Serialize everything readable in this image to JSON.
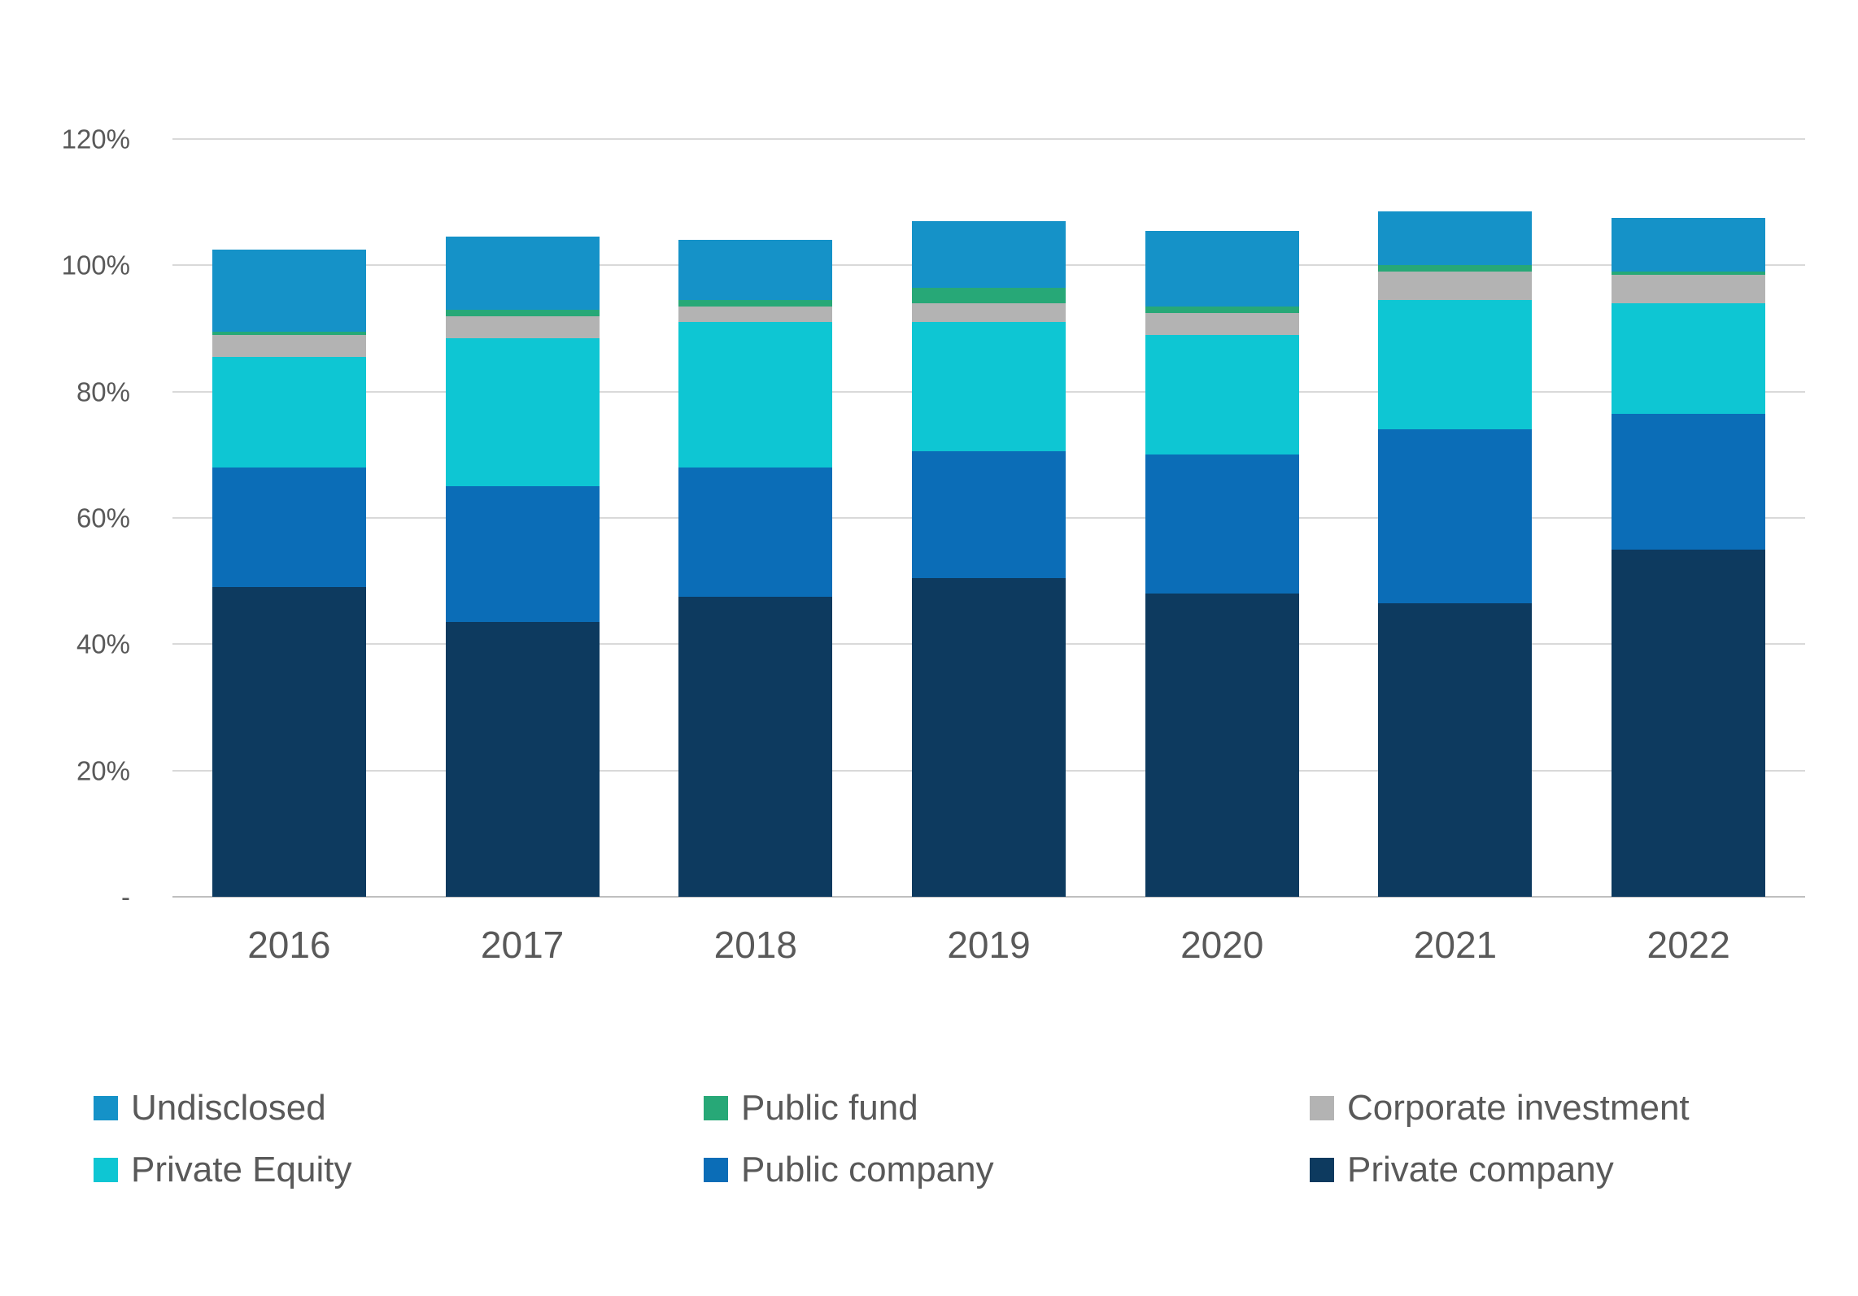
{
  "chart_data": {
    "type": "bar",
    "stacked": true,
    "categories": [
      "2016",
      "2017",
      "2018",
      "2019",
      "2020",
      "2021",
      "2022"
    ],
    "series": [
      {
        "name": "Private company",
        "color": "#0d3a5f",
        "values": [
          49.0,
          43.5,
          47.5,
          50.5,
          48.0,
          46.5,
          55.0
        ]
      },
      {
        "name": "Public company",
        "color": "#0b6db7",
        "values": [
          19.0,
          21.5,
          20.5,
          20.0,
          22.0,
          27.5,
          21.5
        ]
      },
      {
        "name": "Private Equity",
        "color": "#0ec6d3",
        "values": [
          17.5,
          23.5,
          23.0,
          20.5,
          19.0,
          20.5,
          17.5
        ]
      },
      {
        "name": "Corporate investment",
        "color": "#b3b3b3",
        "values": [
          3.5,
          3.5,
          2.5,
          3.0,
          3.5,
          4.5,
          4.5
        ]
      },
      {
        "name": "Public fund",
        "color": "#27a877",
        "values": [
          0.5,
          1.0,
          1.0,
          2.5,
          1.0,
          1.0,
          0.5
        ]
      },
      {
        "name": "Undisclosed",
        "color": "#1592c8",
        "values": [
          13.0,
          11.5,
          9.5,
          10.5,
          12.0,
          8.5,
          8.5
        ]
      }
    ],
    "y_ticks": [
      {
        "label": "120%",
        "value": 120
      },
      {
        "label": "100%",
        "value": 100
      },
      {
        "label": "80%",
        "value": 80
      },
      {
        "label": "60%",
        "value": 60
      },
      {
        "label": "40%",
        "value": 40
      },
      {
        "label": "20%",
        "value": 20
      },
      {
        "label": "-",
        "value": 0
      }
    ],
    "ylim": [
      0,
      120
    ],
    "grid": true,
    "legend_position": "bottom",
    "legend_rows": [
      [
        "Undisclosed",
        "Public fund",
        "Corporate investment"
      ],
      [
        "Private Equity",
        "Public company",
        "Private company"
      ]
    ]
  }
}
